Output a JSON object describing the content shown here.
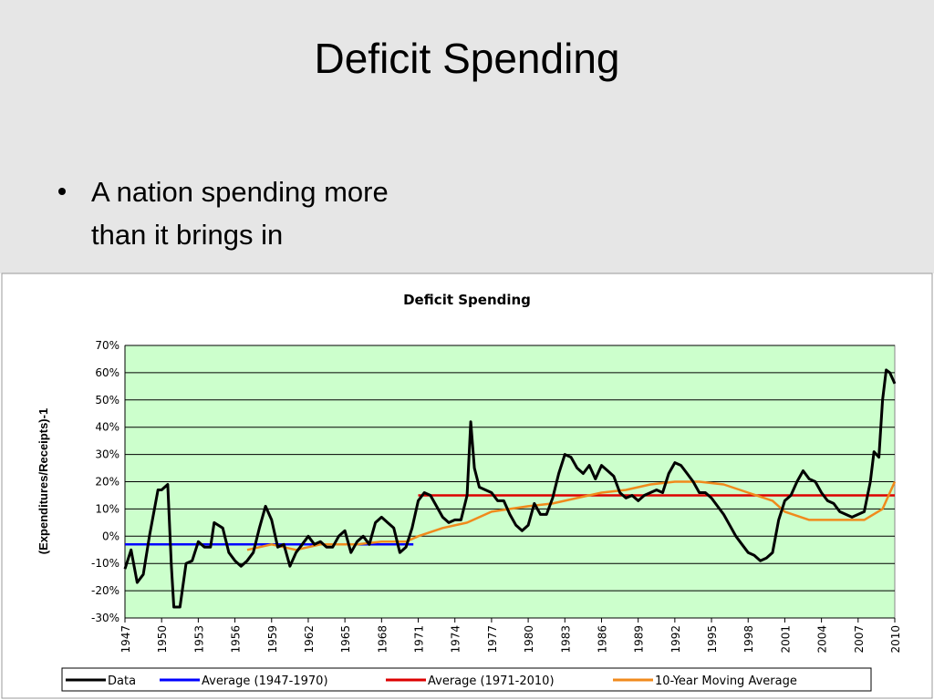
{
  "slide": {
    "title": "Deficit Spending",
    "bullet": [
      "A nation spending more",
      "than it brings in"
    ]
  },
  "chart_data": {
    "type": "line",
    "title": "Deficit Spending",
    "y_label": "(Expenditures/Receipts)-1",
    "xlim": [
      1947,
      2010
    ],
    "xticks": [
      1947,
      1950,
      1953,
      1956,
      1959,
      1962,
      1965,
      1968,
      1971,
      1974,
      1977,
      1980,
      1983,
      1986,
      1989,
      1992,
      1995,
      1998,
      2001,
      2004,
      2007,
      2010
    ],
    "ylim": [
      -30,
      70
    ],
    "yticks": [
      {
        "value": -30,
        "label": "-30%"
      },
      {
        "value": -20,
        "label": "-20%"
      },
      {
        "value": -10,
        "label": "-10%"
      },
      {
        "value": 0,
        "label": "0%"
      },
      {
        "value": 10,
        "label": "10%"
      },
      {
        "value": 20,
        "label": "20%"
      },
      {
        "value": 30,
        "label": "30%"
      },
      {
        "value": 40,
        "label": "40%"
      },
      {
        "value": 50,
        "label": "50%"
      },
      {
        "value": 60,
        "label": "60%"
      },
      {
        "value": 70,
        "label": "70%"
      }
    ],
    "grid": true,
    "legend": "bottom",
    "series": [
      {
        "name": "Data",
        "color": "#000000",
        "x": [
          1947,
          1947.5,
          1948,
          1948.5,
          1949,
          1949.7,
          1950,
          1950.5,
          1950.8,
          1951,
          1951.5,
          1952,
          1952.5,
          1953,
          1953.5,
          1954,
          1954.3,
          1955,
          1955.5,
          1956,
          1956.5,
          1957,
          1957.5,
          1958,
          1958.5,
          1959,
          1959.5,
          1960,
          1960.5,
          1961,
          1961.5,
          1962,
          1962.5,
          1963,
          1963.5,
          1964,
          1964.5,
          1965,
          1965.5,
          1966,
          1966.5,
          1967,
          1967.5,
          1968,
          1968.5,
          1969,
          1969.5,
          1970,
          1970.5,
          1971,
          1971.5,
          1972,
          1972.5,
          1973,
          1973.5,
          1974,
          1974.5,
          1975,
          1975.3,
          1975.6,
          1976,
          1976.5,
          1977,
          1977.5,
          1978,
          1978.5,
          1979,
          1979.5,
          1980,
          1980.5,
          1981,
          1981.5,
          1982,
          1982.5,
          1983,
          1983.5,
          1984,
          1984.5,
          1985,
          1985.5,
          1986,
          1986.5,
          1987,
          1987.5,
          1988,
          1988.5,
          1989,
          1989.5,
          1990,
          1990.5,
          1991,
          1991.5,
          1992,
          1992.5,
          1993,
          1993.5,
          1994,
          1994.5,
          1995,
          1995.5,
          1996,
          1996.5,
          1997,
          1997.5,
          1998,
          1998.5,
          1999,
          1999.5,
          2000,
          2000.5,
          2001,
          2001.5,
          2002,
          2002.5,
          2003,
          2003.5,
          2004,
          2004.5,
          2005,
          2005.5,
          2006,
          2006.5,
          2007,
          2007.5,
          2008,
          2008.3,
          2008.7,
          2009,
          2009.3,
          2009.6,
          2010
        ],
        "values": [
          -12,
          -5,
          -17,
          -14,
          0,
          17,
          17,
          19,
          -11,
          -26,
          -26,
          -10,
          -9,
          -2,
          -4,
          -4,
          5,
          3,
          -6,
          -9,
          -11,
          -9,
          -6,
          3,
          11,
          6,
          -4,
          -3,
          -11,
          -6,
          -3,
          0,
          -3,
          -2,
          -4,
          -4,
          0,
          2,
          -6,
          -2,
          0,
          -3,
          5,
          7,
          5,
          3,
          -6,
          -4,
          3,
          13,
          16,
          15,
          11,
          7,
          5,
          6,
          6,
          15,
          42,
          25,
          18,
          17,
          16,
          13,
          13,
          8,
          4,
          2,
          4,
          12,
          8,
          8,
          14,
          23,
          30,
          29,
          25,
          23,
          26,
          21,
          26,
          24,
          22,
          16,
          14,
          15,
          13,
          15,
          16,
          17,
          16,
          23,
          27,
          26,
          23,
          20,
          16,
          16,
          14,
          11,
          8,
          4,
          0,
          -3,
          -6,
          -7,
          -9,
          -8,
          -6,
          6,
          13,
          15,
          20,
          24,
          21,
          20,
          16,
          13,
          12,
          9,
          8,
          7,
          8,
          9,
          20,
          31,
          29,
          50,
          61,
          60,
          56
        ]
      },
      {
        "name": "Average (1947-1970)",
        "color": "#0000ff",
        "x": [
          1947,
          1970.6
        ],
        "values": [
          -3,
          -3
        ]
      },
      {
        "name": "Average (1971-2010)",
        "color": "#dd0000",
        "x": [
          1971,
          2010
        ],
        "values": [
          15,
          15
        ]
      },
      {
        "name": "10-Year Moving Average",
        "color": "#f08a1c",
        "x": [
          1957,
          1959,
          1961,
          1963,
          1966,
          1968,
          1970,
          1971,
          1973,
          1975,
          1977,
          1980,
          1982,
          1984,
          1986,
          1988,
          1990,
          1992,
          1994,
          1996,
          1998,
          2000,
          2001,
          2003,
          2006,
          2007.5,
          2009,
          2010
        ],
        "values": [
          -5,
          -3,
          -5,
          -3,
          -3,
          -2,
          -2,
          0,
          3,
          5,
          9,
          11,
          12,
          14,
          16,
          17,
          19,
          20,
          20,
          19,
          16,
          13,
          9,
          6,
          6,
          6,
          10,
          20
        ]
      }
    ]
  }
}
